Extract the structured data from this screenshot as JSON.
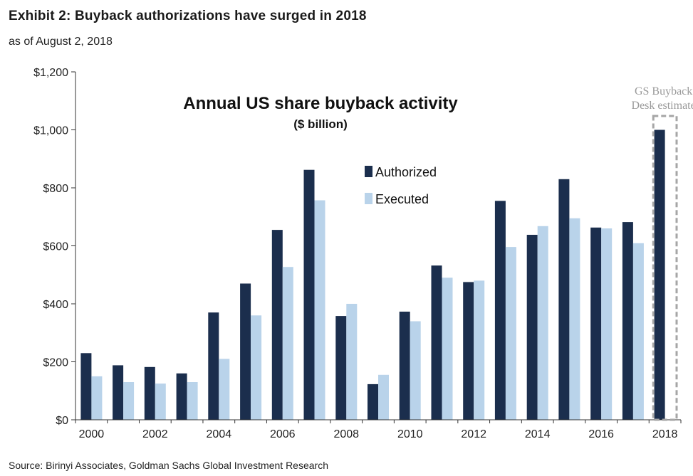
{
  "exhibit_title": "Exhibit 2: Buyback authorizations have surged in 2018",
  "exhibit_subtitle": "as of August 2, 2018",
  "source": "Source: Birinyi Associates, Goldman Sachs Global Investment Research",
  "colors": {
    "authorized": "#1b2e4d",
    "executed": "#b9d3ea",
    "axis": "#333333",
    "estimate_box": "#a6a6a6"
  },
  "chart_data": {
    "type": "bar",
    "title": "Annual US share buyback activity",
    "subtitle": "($ billion)",
    "categories": [
      "2000",
      "2001",
      "2002",
      "2003",
      "2004",
      "2005",
      "2006",
      "2007",
      "2008",
      "2009",
      "2010",
      "2011",
      "2012",
      "2013",
      "2014",
      "2015",
      "2016",
      "2017",
      "2018"
    ],
    "x_tick_labels": [
      "2000",
      "2002",
      "2004",
      "2006",
      "2008",
      "2010",
      "2012",
      "2014",
      "2016",
      "2018"
    ],
    "series": [
      {
        "name": "Authorized",
        "values": [
          230,
          188,
          182,
          160,
          370,
          470,
          655,
          862,
          358,
          123,
          373,
          532,
          475,
          755,
          638,
          830,
          663,
          682,
          1000
        ]
      },
      {
        "name": "Executed",
        "values": [
          150,
          130,
          125,
          130,
          210,
          360,
          527,
          757,
          400,
          155,
          340,
          490,
          480,
          596,
          668,
          695,
          660,
          609,
          null
        ]
      }
    ],
    "y_tick_labels": [
      "$0",
      "$200",
      "$400",
      "$600",
      "$800",
      "$1,000",
      "$1,200"
    ],
    "ylim": [
      0,
      1200
    ],
    "y_ticks": [
      0,
      200,
      400,
      600,
      800,
      1000,
      1200
    ],
    "legend_position": "center",
    "grid": false,
    "annotation": {
      "lines": [
        "GS Buyback",
        "Desk estimate"
      ],
      "category": "2018"
    }
  }
}
